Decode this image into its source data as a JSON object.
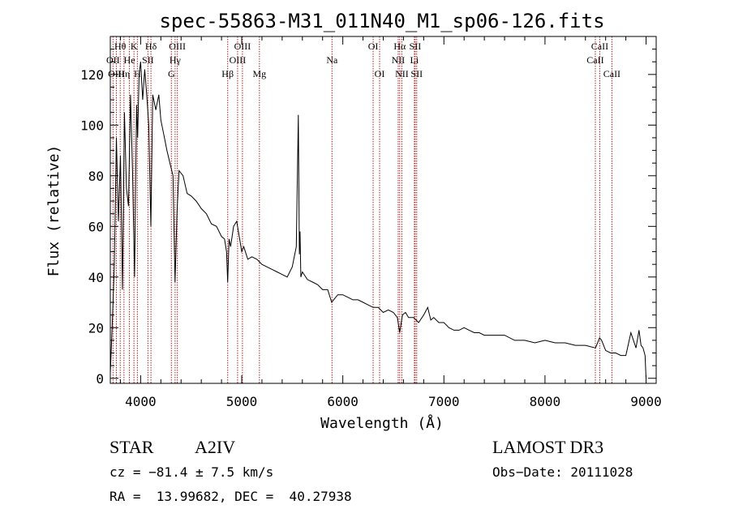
{
  "chart_data": {
    "type": "line",
    "title": "spec-55863-M31_011N40_M1_sp06-126.fits",
    "xlabel": "Wavelength (Å)",
    "ylabel": "Flux (relative)",
    "xlim": [
      3700,
      9100
    ],
    "ylim": [
      -2,
      135
    ],
    "xticks": [
      4000,
      5000,
      6000,
      7000,
      8000,
      9000
    ],
    "yticks": [
      0,
      20,
      40,
      60,
      80,
      100,
      120
    ],
    "series": [
      {
        "name": "spectrum",
        "x": [
          3700,
          3720,
          3740,
          3760,
          3780,
          3800,
          3820,
          3840,
          3860,
          3880,
          3900,
          3920,
          3940,
          3960,
          3970,
          3985,
          4000,
          4020,
          4040,
          4060,
          4080,
          4101,
          4120,
          4150,
          4180,
          4200,
          4230,
          4260,
          4290,
          4320,
          4340,
          4360,
          4380,
          4420,
          4460,
          4500,
          4550,
          4600,
          4650,
          4700,
          4750,
          4800,
          4830,
          4850,
          4861,
          4875,
          4890,
          4920,
          4950,
          4980,
          5000,
          5020,
          5060,
          5100,
          5150,
          5200,
          5250,
          5300,
          5350,
          5400,
          5450,
          5500,
          5540,
          5560,
          5570,
          5577,
          5585,
          5600,
          5650,
          5700,
          5750,
          5800,
          5850,
          5890,
          5950,
          6000,
          6050,
          6100,
          6150,
          6200,
          6250,
          6300,
          6350,
          6400,
          6450,
          6500,
          6540,
          6563,
          6590,
          6620,
          6650,
          6700,
          6750,
          6800,
          6840,
          6870,
          6900,
          6950,
          7000,
          7050,
          7100,
          7150,
          7200,
          7250,
          7300,
          7350,
          7400,
          7500,
          7600,
          7700,
          7800,
          7900,
          8000,
          8100,
          8200,
          8300,
          8400,
          8500,
          8540,
          8560,
          8600,
          8650,
          8700,
          8750,
          8800,
          8850,
          8900,
          8930,
          8950,
          8970,
          8990,
          9000
        ],
        "y": [
          2,
          22,
          45,
          95,
          62,
          88,
          35,
          105,
          75,
          68,
          112,
          82,
          40,
          108,
          95,
          120,
          125,
          110,
          122,
          112,
          100,
          60,
          112,
          106,
          112,
          102,
          96,
          90,
          85,
          80,
          38,
          66,
          82,
          80,
          73,
          72,
          70,
          67,
          65,
          61,
          60,
          56,
          55,
          50,
          38,
          55,
          52,
          60,
          62,
          55,
          50,
          52,
          47,
          48,
          47,
          45,
          44,
          43,
          42,
          41,
          40,
          44,
          52,
          104,
          49,
          58,
          40,
          42,
          39,
          38,
          37,
          35,
          35,
          30,
          33,
          33,
          32,
          31,
          31,
          30,
          29,
          28,
          28,
          26,
          27,
          26,
          24,
          18,
          25,
          26,
          24,
          24,
          22,
          25,
          28,
          23,
          24,
          22,
          22,
          20,
          19,
          19,
          20,
          19,
          18,
          18,
          17,
          17,
          17,
          15,
          15,
          14,
          15,
          14,
          14,
          13,
          13,
          12,
          16,
          15,
          11,
          10,
          10,
          9,
          9,
          18,
          12,
          19,
          13,
          12,
          9,
          0
        ]
      }
    ],
    "lines": [
      {
        "label": "Hθ",
        "wl": 3798,
        "row": 0
      },
      {
        "label": "OII",
        "wl": 3727,
        "row": 1
      },
      {
        "label": "OIII",
        "wl": 3760,
        "row": 2
      },
      {
        "label": "Hη",
        "wl": 3835,
        "row": 2
      },
      {
        "label": "He",
        "wl": 3889,
        "row": 1
      },
      {
        "label": "K",
        "wl": 3934,
        "row": 0
      },
      {
        "label": "H",
        "wl": 3968,
        "row": 2
      },
      {
        "label": "SII",
        "wl": 4072,
        "row": 1
      },
      {
        "label": "Hδ",
        "wl": 4102,
        "row": 0
      },
      {
        "label": "OIII",
        "wl": 4363,
        "row": 0
      },
      {
        "label": "Hγ",
        "wl": 4341,
        "row": 1
      },
      {
        "label": "G",
        "wl": 4304,
        "row": 2
      },
      {
        "label": "Hβ",
        "wl": 4861,
        "row": 2
      },
      {
        "label": "OIII",
        "wl": 5007,
        "row": 0
      },
      {
        "label": "OIII",
        "wl": 4959,
        "row": 1
      },
      {
        "label": "Mg",
        "wl": 5175,
        "row": 2
      },
      {
        "label": "Na",
        "wl": 5893,
        "row": 1
      },
      {
        "label": "OI",
        "wl": 6300,
        "row": 0
      },
      {
        "label": "OI",
        "wl": 6364,
        "row": 2
      },
      {
        "label": "Hα",
        "wl": 6563,
        "row": 0
      },
      {
        "label": "NII",
        "wl": 6548,
        "row": 1
      },
      {
        "label": "NII",
        "wl": 6584,
        "row": 2
      },
      {
        "label": "SII",
        "wl": 6716,
        "row": 0
      },
      {
        "label": "Li",
        "wl": 6708,
        "row": 1
      },
      {
        "label": "SII",
        "wl": 6731,
        "row": 2
      },
      {
        "label": "CaII",
        "wl": 8542,
        "row": 0
      },
      {
        "label": "CaII",
        "wl": 8498,
        "row": 1
      },
      {
        "label": "CaII",
        "wl": 8662,
        "row": 2
      }
    ]
  },
  "info": {
    "object_class": "STAR",
    "subclass": "A2IV",
    "survey": "LAMOST DR3",
    "cz": "cz = −81.4 ± 7.5 km/s",
    "obs_date": "Obs−Date: 20111028",
    "radec": "RA =  13.99682, DEC =  40.27938"
  },
  "colors": {
    "line_marker": "#b22222",
    "spectrum": "#000000"
  }
}
